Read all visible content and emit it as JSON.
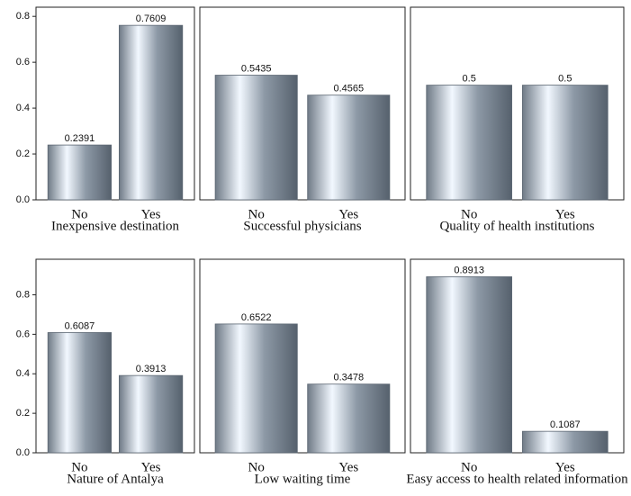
{
  "chart_data": [
    {
      "type": "bar",
      "title": "Inexpensive destination",
      "categories": [
        "No",
        "Yes"
      ],
      "values": [
        0.2391,
        0.7609
      ],
      "color": "#5b6672",
      "ylim": [
        0,
        0.84
      ],
      "yticks": [
        {
          "value": 0,
          "label": "0.0"
        },
        0.2,
        0.4,
        0.6,
        0.8
      ]
    },
    {
      "type": "bar",
      "title": "Successful physicians",
      "categories": [
        "No",
        "Yes"
      ],
      "values": [
        0.5435,
        0.4565
      ],
      "color": "#5b6672",
      "ylim": [
        0,
        0.84
      ]
    },
    {
      "type": "bar",
      "title": "Quality of health institutions",
      "categories": [
        "No",
        "Yes"
      ],
      "values": [
        0.5,
        0.5
      ],
      "color": "#5b6672",
      "ylim": [
        0,
        0.84
      ]
    },
    {
      "type": "bar",
      "title": "Nature of Antalya",
      "categories": [
        "No",
        "Yes"
      ],
      "values": [
        0.6087,
        0.3913
      ],
      "color": "#5b6672",
      "ylim": [
        0,
        0.98
      ],
      "yticks": [
        {
          "value": 0,
          "label": "0.0"
        },
        0.2,
        0.4,
        0.6,
        0.8
      ]
    },
    {
      "type": "bar",
      "title": "Low waiting time",
      "categories": [
        "No",
        "Yes"
      ],
      "values": [
        0.6522,
        0.3478
      ],
      "color": "#5b6672",
      "ylim": [
        0,
        0.98
      ]
    },
    {
      "type": "bar",
      "title": "Easy access to health related information",
      "categories": [
        "No",
        "Yes"
      ],
      "values": [
        0.8913,
        0.1087
      ],
      "color": "#5b6672",
      "ylim": [
        0,
        0.98
      ]
    }
  ]
}
